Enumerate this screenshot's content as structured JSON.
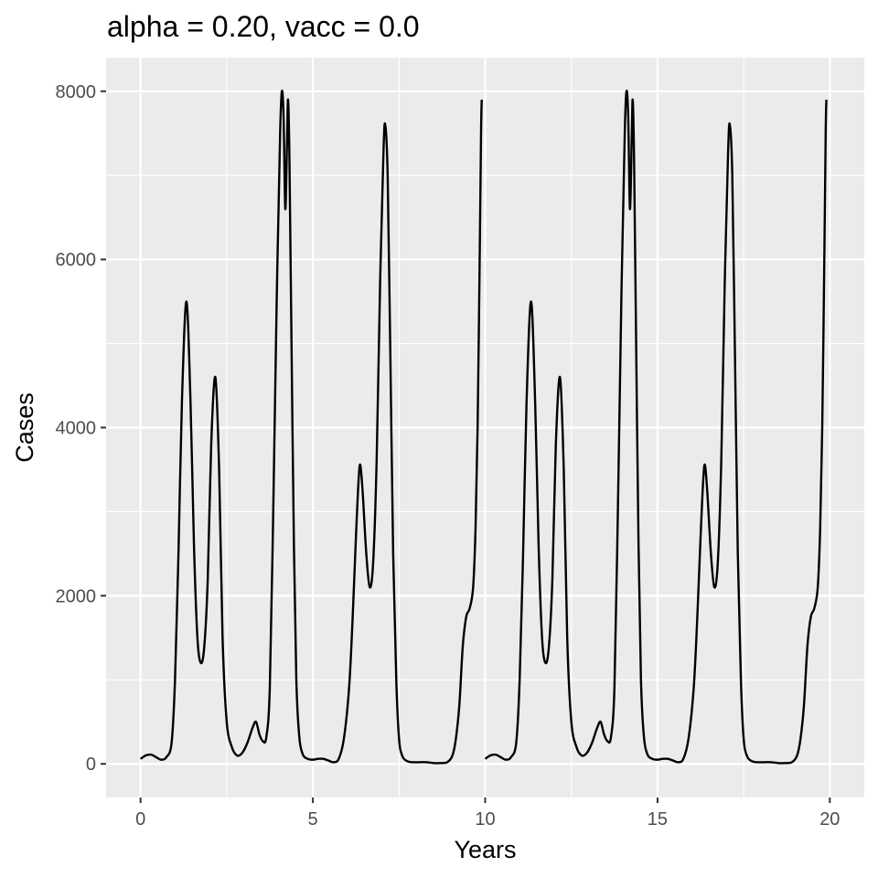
{
  "chart_data": {
    "type": "line",
    "title": "alpha = 0.20, vacc = 0.0",
    "xlabel": "Years",
    "ylabel": "Cases",
    "xlim": [
      -1,
      21
    ],
    "ylim": [
      -400,
      8400
    ],
    "x_ticks": [
      0,
      5,
      10,
      15,
      20
    ],
    "x_tick_labels": [
      "0",
      "5",
      "10",
      "15",
      "20"
    ],
    "y_ticks": [
      0,
      2000,
      4000,
      6000,
      8000
    ],
    "y_tick_labels": [
      "0",
      "2000",
      "4000",
      "6000",
      "8000"
    ],
    "grid": true,
    "legend": "none",
    "colors": {
      "panel": "#ebebeb",
      "grid": "#ffffff",
      "line": "#000000",
      "tick": "#4d4d4d"
    },
    "series": [
      {
        "segments": [
          [
            [
              0.0,
              60
            ],
            [
              0.15,
              100
            ],
            [
              0.3,
              110
            ],
            [
              0.45,
              80
            ],
            [
              0.6,
              50
            ],
            [
              0.75,
              80
            ],
            [
              0.9,
              250
            ],
            [
              1.0,
              1000
            ],
            [
              1.1,
              2500
            ],
            [
              1.2,
              4300
            ],
            [
              1.33,
              5500
            ],
            [
              1.45,
              4300
            ],
            [
              1.55,
              2600
            ],
            [
              1.65,
              1500
            ],
            [
              1.75,
              1200
            ],
            [
              1.85,
              1400
            ],
            [
              1.95,
              2200
            ],
            [
              2.05,
              3800
            ],
            [
              2.17,
              4600
            ],
            [
              2.28,
              3500
            ],
            [
              2.38,
              1500
            ],
            [
              2.5,
              500
            ],
            [
              2.65,
              200
            ],
            [
              2.8,
              100
            ],
            [
              2.95,
              130
            ],
            [
              3.1,
              250
            ],
            [
              3.25,
              430
            ],
            [
              3.35,
              500
            ],
            [
              3.45,
              350
            ],
            [
              3.55,
              270
            ],
            [
              3.65,
              320
            ],
            [
              3.75,
              900
            ],
            [
              3.85,
              3000
            ],
            [
              3.95,
              5500
            ],
            [
              4.05,
              7500
            ],
            [
              4.1,
              8000
            ],
            [
              4.15,
              7700
            ],
            [
              4.2,
              6600
            ],
            [
              4.25,
              7400
            ],
            [
              4.28,
              7900
            ],
            [
              4.32,
              7200
            ],
            [
              4.38,
              5000
            ],
            [
              4.45,
              2600
            ],
            [
              4.52,
              1000
            ],
            [
              4.6,
              350
            ],
            [
              4.7,
              120
            ],
            [
              4.85,
              60
            ],
            [
              5.0,
              50
            ],
            [
              5.15,
              60
            ],
            [
              5.3,
              60
            ],
            [
              5.45,
              40
            ],
            [
              5.6,
              20
            ],
            [
              5.75,
              60
            ],
            [
              5.9,
              300
            ],
            [
              6.05,
              900
            ],
            [
              6.15,
              1700
            ],
            [
              6.25,
              2700
            ],
            [
              6.33,
              3400
            ],
            [
              6.38,
              3550
            ],
            [
              6.45,
              3200
            ],
            [
              6.55,
              2500
            ],
            [
              6.65,
              2100
            ],
            [
              6.75,
              2400
            ],
            [
              6.85,
              3600
            ],
            [
              6.95,
              5700
            ],
            [
              7.05,
              7300
            ],
            [
              7.1,
              7600
            ],
            [
              7.17,
              7000
            ],
            [
              7.25,
              4800
            ],
            [
              7.33,
              2500
            ],
            [
              7.42,
              1000
            ],
            [
              7.5,
              300
            ],
            [
              7.6,
              90
            ],
            [
              7.75,
              30
            ],
            [
              7.9,
              20
            ],
            [
              8.1,
              20
            ],
            [
              8.3,
              20
            ],
            [
              8.5,
              10
            ],
            [
              8.7,
              10
            ],
            [
              8.9,
              20
            ],
            [
              9.05,
              100
            ],
            [
              9.15,
              300
            ],
            [
              9.25,
              700
            ],
            [
              9.35,
              1400
            ],
            [
              9.45,
              1750
            ],
            [
              9.55,
              1850
            ],
            [
              9.65,
              2100
            ],
            [
              9.72,
              2800
            ],
            [
              9.78,
              4000
            ],
            [
              9.84,
              6000
            ],
            [
              9.88,
              7500
            ],
            [
              9.9,
              7900
            ]
          ],
          [
            [
              10.0,
              60
            ],
            [
              10.15,
              100
            ],
            [
              10.3,
              110
            ],
            [
              10.45,
              80
            ],
            [
              10.6,
              50
            ],
            [
              10.75,
              80
            ],
            [
              10.9,
              250
            ],
            [
              11.0,
              1000
            ],
            [
              11.1,
              2500
            ],
            [
              11.2,
              4300
            ],
            [
              11.33,
              5500
            ],
            [
              11.45,
              4300
            ],
            [
              11.55,
              2600
            ],
            [
              11.65,
              1500
            ],
            [
              11.75,
              1200
            ],
            [
              11.85,
              1400
            ],
            [
              11.95,
              2200
            ],
            [
              12.05,
              3800
            ],
            [
              12.17,
              4600
            ],
            [
              12.28,
              3500
            ],
            [
              12.38,
              1500
            ],
            [
              12.5,
              500
            ],
            [
              12.65,
              200
            ],
            [
              12.8,
              100
            ],
            [
              12.95,
              130
            ],
            [
              13.1,
              250
            ],
            [
              13.25,
              430
            ],
            [
              13.35,
              500
            ],
            [
              13.45,
              350
            ],
            [
              13.55,
              270
            ],
            [
              13.65,
              320
            ],
            [
              13.75,
              900
            ],
            [
              13.85,
              3000
            ],
            [
              13.95,
              5500
            ],
            [
              14.05,
              7500
            ],
            [
              14.1,
              8000
            ],
            [
              14.15,
              7700
            ],
            [
              14.2,
              6600
            ],
            [
              14.25,
              7400
            ],
            [
              14.28,
              7900
            ],
            [
              14.32,
              7200
            ],
            [
              14.38,
              5000
            ],
            [
              14.45,
              2600
            ],
            [
              14.52,
              1000
            ],
            [
              14.6,
              350
            ],
            [
              14.7,
              120
            ],
            [
              14.85,
              60
            ],
            [
              15.0,
              50
            ],
            [
              15.15,
              60
            ],
            [
              15.3,
              60
            ],
            [
              15.45,
              40
            ],
            [
              15.6,
              20
            ],
            [
              15.75,
              60
            ],
            [
              15.9,
              300
            ],
            [
              16.05,
              900
            ],
            [
              16.15,
              1700
            ],
            [
              16.25,
              2700
            ],
            [
              16.33,
              3400
            ],
            [
              16.38,
              3550
            ],
            [
              16.45,
              3200
            ],
            [
              16.55,
              2500
            ],
            [
              16.65,
              2100
            ],
            [
              16.75,
              2400
            ],
            [
              16.85,
              3600
            ],
            [
              16.95,
              5700
            ],
            [
              17.05,
              7300
            ],
            [
              17.1,
              7600
            ],
            [
              17.17,
              7000
            ],
            [
              17.25,
              4800
            ],
            [
              17.33,
              2500
            ],
            [
              17.42,
              1000
            ],
            [
              17.5,
              300
            ],
            [
              17.6,
              90
            ],
            [
              17.75,
              30
            ],
            [
              17.9,
              20
            ],
            [
              18.1,
              20
            ],
            [
              18.3,
              20
            ],
            [
              18.5,
              10
            ],
            [
              18.7,
              10
            ],
            [
              18.9,
              20
            ],
            [
              19.05,
              100
            ],
            [
              19.15,
              300
            ],
            [
              19.25,
              700
            ],
            [
              19.35,
              1400
            ],
            [
              19.45,
              1750
            ],
            [
              19.55,
              1850
            ],
            [
              19.65,
              2100
            ],
            [
              19.72,
              2800
            ],
            [
              19.78,
              4000
            ],
            [
              19.84,
              6000
            ],
            [
              19.88,
              7500
            ],
            [
              19.9,
              7900
            ]
          ]
        ]
      }
    ]
  }
}
